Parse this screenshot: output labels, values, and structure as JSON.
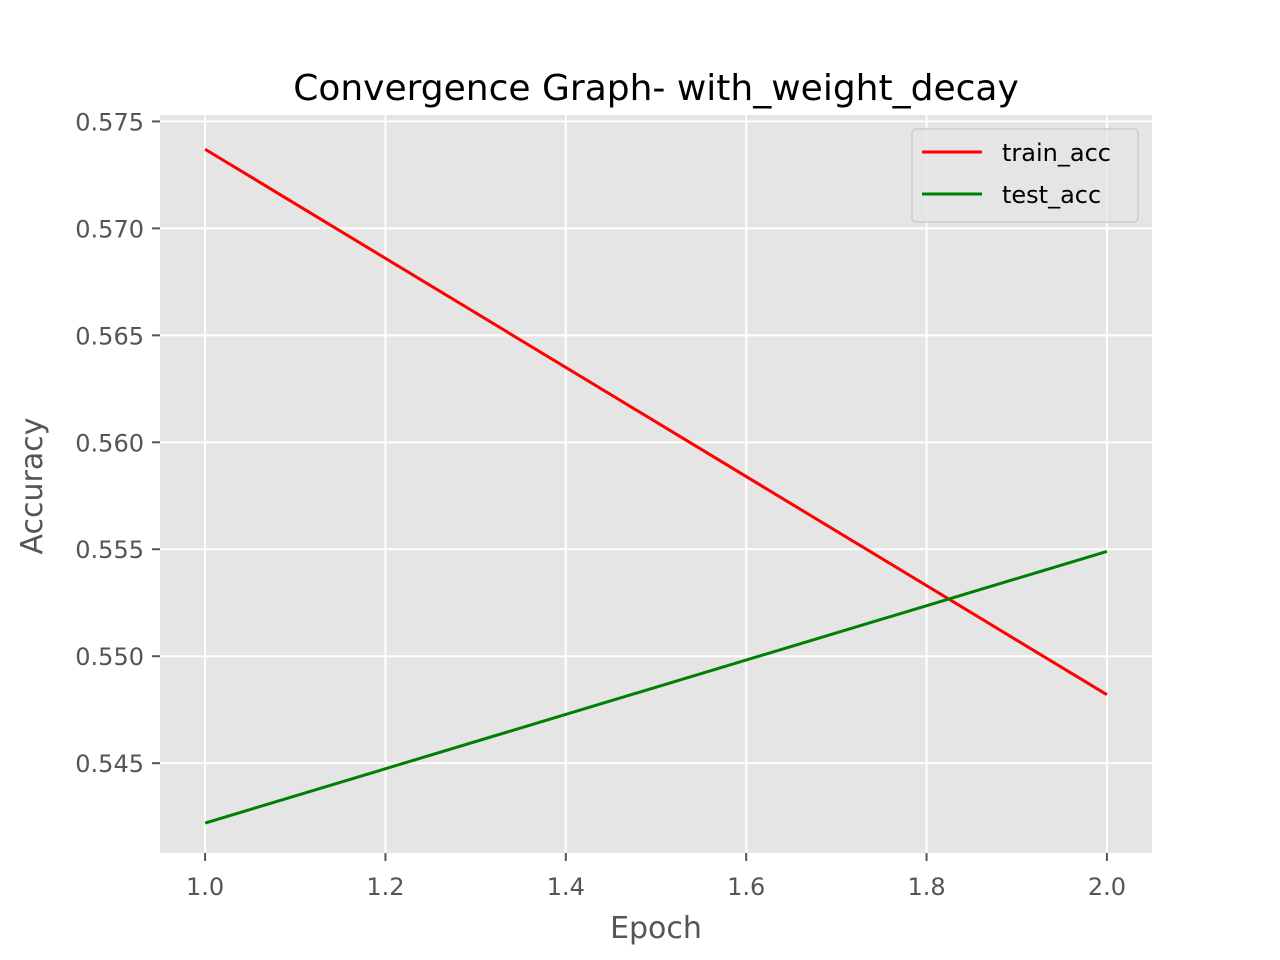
{
  "chart_data": {
    "type": "line",
    "title": "Convergence Graph- with_weight_decay",
    "xlabel": "Epoch",
    "ylabel": "Accuracy",
    "xlim": [
      0.95,
      2.05
    ],
    "ylim": [
      0.5408,
      0.5753
    ],
    "x_ticks": [
      1.0,
      1.2,
      1.4,
      1.6,
      1.8,
      2.0
    ],
    "x_tick_labels": [
      "1.0",
      "1.2",
      "1.4",
      "1.6",
      "1.8",
      "2.0"
    ],
    "y_ticks": [
      0.545,
      0.55,
      0.555,
      0.56,
      0.565,
      0.57,
      0.575
    ],
    "y_tick_labels": [
      "0.545",
      "0.550",
      "0.555",
      "0.560",
      "0.565",
      "0.570",
      "0.575"
    ],
    "grid": true,
    "legend_position": "top-right",
    "background_color": "#e5e5e5",
    "x": [
      1.0,
      2.0
    ],
    "series": [
      {
        "name": "train_acc",
        "color": "#ff0000",
        "values": [
          0.5737,
          0.5482
        ]
      },
      {
        "name": "test_acc",
        "color": "#008000",
        "values": [
          0.5422,
          0.5549
        ]
      }
    ]
  }
}
